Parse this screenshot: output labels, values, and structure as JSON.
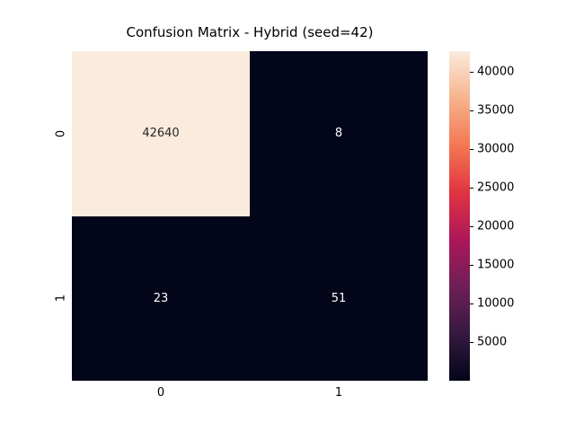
{
  "figure": {
    "background": "#ffffff"
  },
  "chart_data": {
    "type": "heatmap",
    "title": "Confusion Matrix - Hybrid (seed=42)",
    "x_tick_labels": [
      "0",
      "1"
    ],
    "y_tick_labels": [
      "0",
      "1"
    ],
    "values": [
      [
        42640,
        8
      ],
      [
        23,
        51
      ]
    ],
    "vmin": 8,
    "vmax": 42640,
    "colormap": "rocket",
    "colormap_stops": [
      {
        "pos": 0.0,
        "color": "#03051A"
      },
      {
        "pos": 0.14,
        "color": "#35193E"
      },
      {
        "pos": 0.29,
        "color": "#701F57"
      },
      {
        "pos": 0.43,
        "color": "#AD1759"
      },
      {
        "pos": 0.57,
        "color": "#E13342"
      },
      {
        "pos": 0.71,
        "color": "#F37651"
      },
      {
        "pos": 0.86,
        "color": "#F6B48F"
      },
      {
        "pos": 1.0,
        "color": "#FAEBDD"
      }
    ],
    "colorbar_ticks": [
      5000,
      10000,
      15000,
      20000,
      25000,
      30000,
      35000,
      40000
    ],
    "annot_color_dark": "#262626",
    "annot_color_light": "#ffffff",
    "legend_position": "right",
    "grid": false
  }
}
